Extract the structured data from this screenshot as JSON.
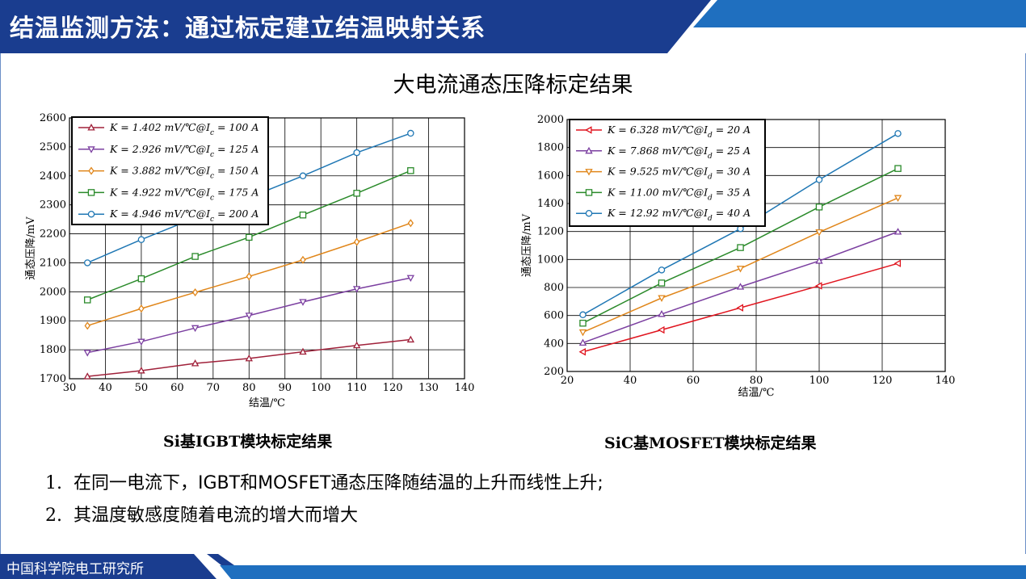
{
  "header": {
    "title": "结温监测方法：通过标定建立结温映射关系",
    "colors": {
      "primary": "#1a3d8f",
      "accent": "#1f6fbf"
    }
  },
  "subtitle": "大电流通态压降标定结果",
  "captions": {
    "left": "Si基IGBT模块标定结果",
    "right": "SiC基MOSFET模块标定结果"
  },
  "bullets": [
    {
      "num": "1.",
      "text": "在同一电流下，IGBT和MOSFET通态压降随结温的上升而线性上升;"
    },
    {
      "num": "2.",
      "text": "其温度敏感度随着电流的增大而增大"
    }
  ],
  "footer": {
    "org": "中国科学院电工研究所"
  },
  "chart_data": [
    {
      "type": "line",
      "xlabel": "结温/℃",
      "ylabel": "通态压降/mV",
      "xlim": [
        30,
        140
      ],
      "ylim": [
        1700,
        2600
      ],
      "xticks": [
        30,
        40,
        50,
        60,
        70,
        80,
        90,
        100,
        110,
        120,
        130,
        140
      ],
      "yticks": [
        1700,
        1800,
        1900,
        2000,
        2100,
        2200,
        2300,
        2400,
        2500,
        2600
      ],
      "grid": true,
      "legend_position": "top-left",
      "x": [
        35,
        50,
        65,
        80,
        95,
        110,
        125
      ],
      "series": [
        {
          "name": "K = 1.402 mV/℃@I",
          "sub": "c",
          "tail": " = 100 A",
          "color": "#a0213a",
          "marker": "triangle-up",
          "values": [
            1708,
            1728,
            1753,
            1770,
            1793,
            1815,
            1835
          ]
        },
        {
          "name": "K = 2.926 mV/℃@I",
          "sub": "c",
          "tail": " = 125 A",
          "color": "#7b3fa0",
          "marker": "triangle-down",
          "values": [
            1790,
            1828,
            1875,
            1918,
            1965,
            2010,
            2048
          ]
        },
        {
          "name": "K = 3.882 mV/℃@I",
          "sub": "c",
          "tail": " = 150 A",
          "color": "#e0861a",
          "marker": "diamond",
          "values": [
            1883,
            1942,
            1998,
            2053,
            2110,
            2172,
            2237
          ]
        },
        {
          "name": "K = 4.922 mV/℃@I",
          "sub": "c",
          "tail": " = 175 A",
          "color": "#2a8a2a",
          "marker": "square",
          "values": [
            1972,
            2045,
            2122,
            2188,
            2265,
            2340,
            2418
          ]
        },
        {
          "name": "K = 4.946 mV/℃@I",
          "sub": "c",
          "tail": " = 200 A",
          "color": "#1f77b4",
          "marker": "circle",
          "values": [
            2100,
            2180,
            2255,
            2325,
            2400,
            2480,
            2547
          ]
        }
      ]
    },
    {
      "type": "line",
      "xlabel": "结温/℃",
      "ylabel": "通态压降/mV",
      "xlim": [
        20,
        140
      ],
      "ylim": [
        200,
        2000
      ],
      "xticks": [
        20,
        40,
        60,
        80,
        100,
        120,
        140
      ],
      "yticks": [
        200,
        400,
        600,
        800,
        1000,
        1200,
        1400,
        1600,
        1800,
        2000
      ],
      "grid": true,
      "legend_position": "top-left",
      "x": [
        25,
        50,
        75,
        100,
        125
      ],
      "series": [
        {
          "name": "K = 6.328 mV/℃@I",
          "sub": "d",
          "tail": " = 20 A",
          "color": "#e0141e",
          "marker": "triangle-left",
          "values": [
            340,
            497,
            655,
            812,
            972
          ]
        },
        {
          "name": "K = 7.868 mV/℃@I",
          "sub": "d",
          "tail": " = 25 A",
          "color": "#7b3fa0",
          "marker": "triangle-up",
          "values": [
            405,
            610,
            805,
            990,
            1198
          ]
        },
        {
          "name": "K = 9.525 mV/℃@I",
          "sub": "d",
          "tail": " = 30 A",
          "color": "#e0861a",
          "marker": "triangle-down",
          "values": [
            480,
            725,
            935,
            1195,
            1440
          ]
        },
        {
          "name": "K = 11.00 mV/℃@I",
          "sub": "d",
          "tail": " = 35 A",
          "color": "#2a8a2a",
          "marker": "square",
          "values": [
            545,
            832,
            1085,
            1375,
            1650
          ]
        },
        {
          "name": "K = 12.92 mV/℃@I",
          "sub": "d",
          "tail": " = 40 A",
          "color": "#1f77b4",
          "marker": "circle",
          "values": [
            605,
            925,
            1220,
            1570,
            1900
          ]
        }
      ]
    }
  ]
}
